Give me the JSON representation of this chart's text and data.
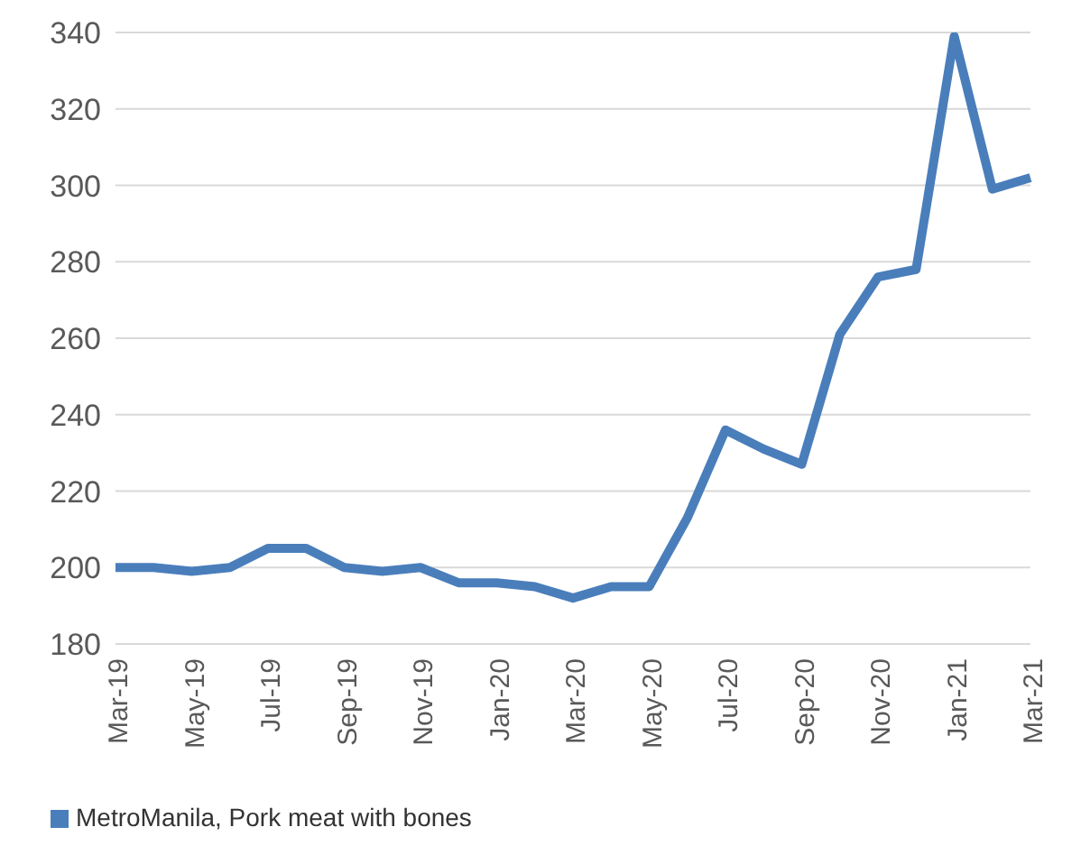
{
  "chart_data": {
    "type": "line",
    "categories": [
      "Mar-19",
      null,
      "May-19",
      null,
      "Jul-19",
      null,
      "Sep-19",
      null,
      "Nov-19",
      null,
      "Jan-20",
      null,
      "Mar-20",
      null,
      "May-20",
      null,
      "Jul-20",
      null,
      "Sep-20",
      null,
      "Nov-20",
      null,
      "Jan-21",
      null,
      "Mar-21"
    ],
    "series": [
      {
        "name": "MetroManila, Pork meat with bones",
        "color": "#4a7ebb",
        "values": [
          200,
          200,
          199,
          200,
          205,
          205,
          200,
          199,
          200,
          196,
          196,
          195,
          192,
          195,
          195,
          213,
          236,
          231,
          227,
          261,
          276,
          278,
          339,
          299,
          302
        ]
      }
    ],
    "ylim": [
      180,
      340
    ],
    "yticks": [
      180,
      200,
      220,
      240,
      260,
      280,
      300,
      320,
      340
    ],
    "grid": "y",
    "legend": "bottom left",
    "marker": "none",
    "line_style": "solid"
  }
}
